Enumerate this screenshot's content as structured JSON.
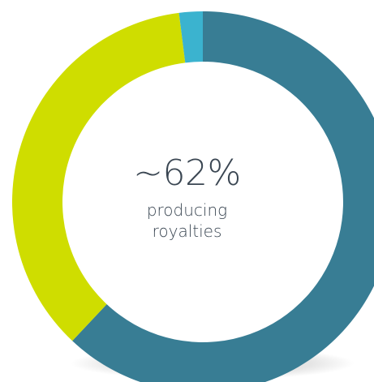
{
  "chart_data": {
    "type": "pie",
    "donut": true,
    "center_value": "~62%",
    "center_label_lines": [
      "producing",
      "royalties"
    ],
    "slices": [
      {
        "value": 62,
        "color": "#387d94"
      },
      {
        "value": 36,
        "color": "#cfdd00"
      },
      {
        "value": 2,
        "color": "#3bb3cf"
      }
    ],
    "start_position": "top",
    "direction": "clockwise",
    "legend": "none"
  }
}
